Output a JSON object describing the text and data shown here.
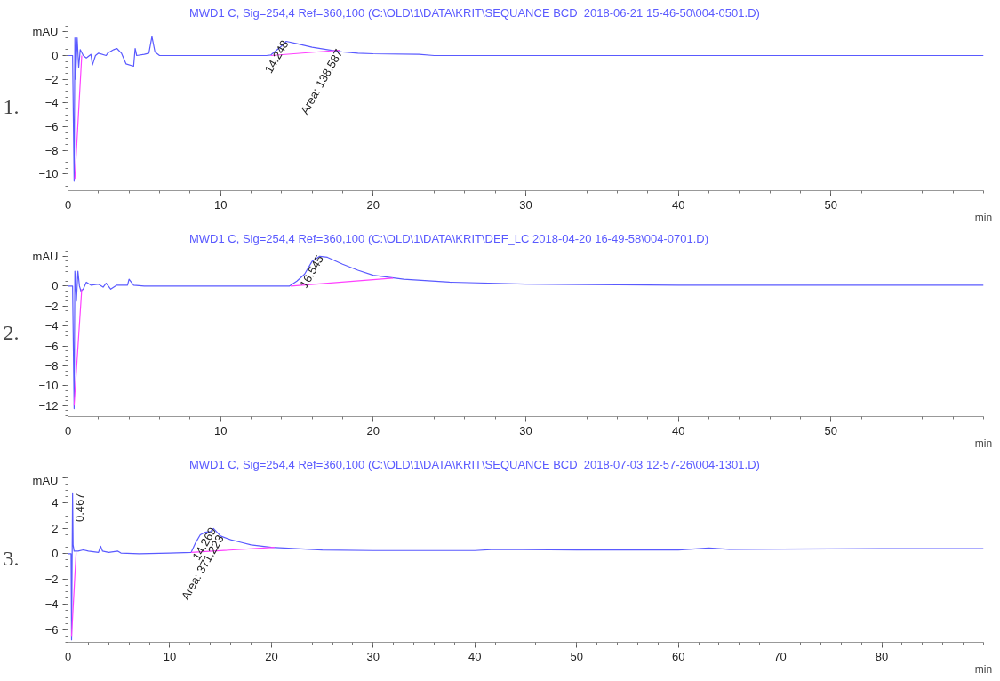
{
  "chart_data": [
    {
      "type": "line",
      "xlabel": "min",
      "legend": "top",
      "grid": false,
      "xlim": [
        0,
        60
      ],
      "ylim": [
        -11.4,
        2.7
      ],
      "xticks": [
        0,
        10,
        20,
        30,
        40,
        50
      ],
      "yticks": [
        -10,
        -8,
        -6,
        -4,
        -2,
        0,
        {
          "value": 2,
          "label": "mAU"
        }
      ],
      "annotations": [
        "1.",
        {
          "text": "14.248",
          "x": 14.248,
          "y": 1.2
        },
        {
          "text": "Area: 138.587",
          "x": 17.8,
          "y": 0.45
        }
      ],
      "series": [
        {
          "name": "MWD1 C, Sig=254,4 Ref=360,100 (C:\\OLD\\1\\DATA\\KRIT\\SEQUANCE BCD  2018-06-21 15-46-50\\004-0501.D)",
          "color": "#5a5aff",
          "x": [
            0,
            0.3,
            0.4,
            0.45,
            0.5,
            0.6,
            0.7,
            0.8,
            1.0,
            1.2,
            1.5,
            1.6,
            1.8,
            2.0,
            2.5,
            2.6,
            3.0,
            3.2,
            3.5,
            3.8,
            4.3,
            4.4,
            4.5,
            5.0,
            5.3,
            5.5,
            5.7,
            6.0,
            10,
            13,
            13.3,
            14.0,
            14.3,
            15,
            16,
            17,
            18,
            19,
            20,
            23,
            24,
            30,
            40,
            50,
            60
          ],
          "values": [
            0,
            0,
            -10.6,
            1.5,
            -2,
            1.5,
            -1,
            0.5,
            0,
            -0.2,
            0.1,
            -0.8,
            0,
            0.2,
            0,
            0.2,
            0.5,
            0.6,
            0.2,
            -0.7,
            -0.9,
            0.6,
            0,
            0.1,
            0.2,
            1.6,
            0.3,
            0,
            0,
            0,
            0.05,
            0.8,
            1.2,
            1.0,
            0.7,
            0.5,
            0.3,
            0.2,
            0.15,
            0.1,
            0,
            0,
            0,
            0,
            0
          ]
        },
        {
          "color": "#ff40ff",
          "x": [
            0.45,
            0.9,
            5,
            13.3,
            17.8
          ],
          "values": [
            -10.4,
            0,
            null,
            0,
            0.45
          ]
        }
      ]
    },
    {
      "type": "line",
      "xlabel": "min",
      "legend": "top",
      "grid": false,
      "xlim": [
        0,
        60
      ],
      "ylim": [
        -13.1,
        3.7
      ],
      "xticks": [
        0,
        10,
        20,
        30,
        40,
        50
      ],
      "yticks": [
        -12,
        -10,
        -8,
        -6,
        -4,
        -2,
        0,
        {
          "value": 3,
          "label": "mAU"
        }
      ],
      "annotations": [
        "2.",
        {
          "text": "16.545",
          "x": 16.545,
          "y": 3.0
        }
      ],
      "series": [
        {
          "name": "MWD1 C, Sig=254,4 Ref=360,100 (C:\\OLD\\1\\DATA\\KRIT\\DEF_LC 2018-04-20 16-49-58\\004-0701.D)",
          "color": "#5a5aff",
          "x": [
            0,
            0.3,
            0.4,
            0.45,
            0.55,
            0.65,
            0.75,
            0.85,
            1.0,
            1.2,
            1.5,
            2.0,
            2.3,
            2.5,
            2.8,
            3.2,
            3.9,
            4.0,
            4.3,
            5,
            10,
            14.5,
            15.0,
            15.5,
            16.0,
            16.5,
            17,
            18,
            19,
            20,
            21,
            22,
            25,
            30,
            40,
            50,
            60
          ],
          "values": [
            0,
            0,
            -12.3,
            1.5,
            -1.5,
            1.5,
            0,
            -0.5,
            -0.3,
            0.4,
            0.1,
            0.2,
            -0.1,
            0.3,
            -0.3,
            0.1,
            0.1,
            0.7,
            0.1,
            0,
            0,
            0,
            0.5,
            1.2,
            2.5,
            3.0,
            2.9,
            2.2,
            1.6,
            1.1,
            0.9,
            0.7,
            0.4,
            0.2,
            0.1,
            0.1,
            0.1
          ]
        },
        {
          "color": "#ff40ff",
          "x": [
            0.4,
            0.9,
            5,
            14.6,
            21.3
          ],
          "values": [
            -12,
            -0.3,
            null,
            0,
            0.8
          ]
        }
      ]
    },
    {
      "type": "line",
      "xlabel": "min",
      "legend": "top",
      "grid": false,
      "xlim": [
        0,
        90
      ],
      "ylim": [
        -7,
        6.2
      ],
      "xticks": [
        0,
        10,
        20,
        30,
        40,
        50,
        60,
        70,
        80
      ],
      "yticks": [
        -6,
        -4,
        -2,
        0,
        2,
        4,
        {
          "value": 6,
          "label": "mAU"
        }
      ],
      "annotations": [
        "3.",
        {
          "text": "0.467",
          "x": 0.467,
          "y": 4.8
        },
        {
          "text": "14.269",
          "x": 14.269,
          "y": 2.0
        },
        {
          "text": "Area: 371.223",
          "x": 15,
          "y": 1.4
        }
      ],
      "series": [
        {
          "name": "MWD1 C, Sig=254,4 Ref=360,100 (C:\\OLD\\1\\DATA\\KRIT\\SEQUANCE BCD  2018-07-03 12-57-26\\004-1301.D)",
          "color": "#5a5aff",
          "x": [
            0,
            0.3,
            0.35,
            0.45,
            0.5,
            0.6,
            1,
            1.5,
            2,
            3,
            3.2,
            3.4,
            4,
            4.9,
            5.2,
            7,
            10,
            12.1,
            12.5,
            13,
            13.5,
            14,
            14.3,
            15,
            16,
            17,
            18,
            20,
            25,
            30,
            40,
            42,
            50,
            60,
            63,
            65,
            80,
            90
          ],
          "values": [
            0,
            0,
            -6.8,
            4.8,
            0.7,
            0.2,
            0.2,
            0.3,
            0.2,
            0.1,
            0.6,
            0.2,
            0.1,
            0.2,
            0.05,
            0,
            0.05,
            0.1,
            0.8,
            1.5,
            1.7,
            1.75,
            2.0,
            1.4,
            1.1,
            0.9,
            0.7,
            0.5,
            0.3,
            0.25,
            0.25,
            0.35,
            0.3,
            0.3,
            0.45,
            0.35,
            0.4,
            0.4
          ]
        },
        {
          "color": "#ff40ff",
          "x": [
            0.35,
            0.8,
            5,
            12.1,
            20.3
          ],
          "values": [
            -6.5,
            0.1,
            null,
            0.1,
            0.5
          ]
        }
      ]
    }
  ]
}
